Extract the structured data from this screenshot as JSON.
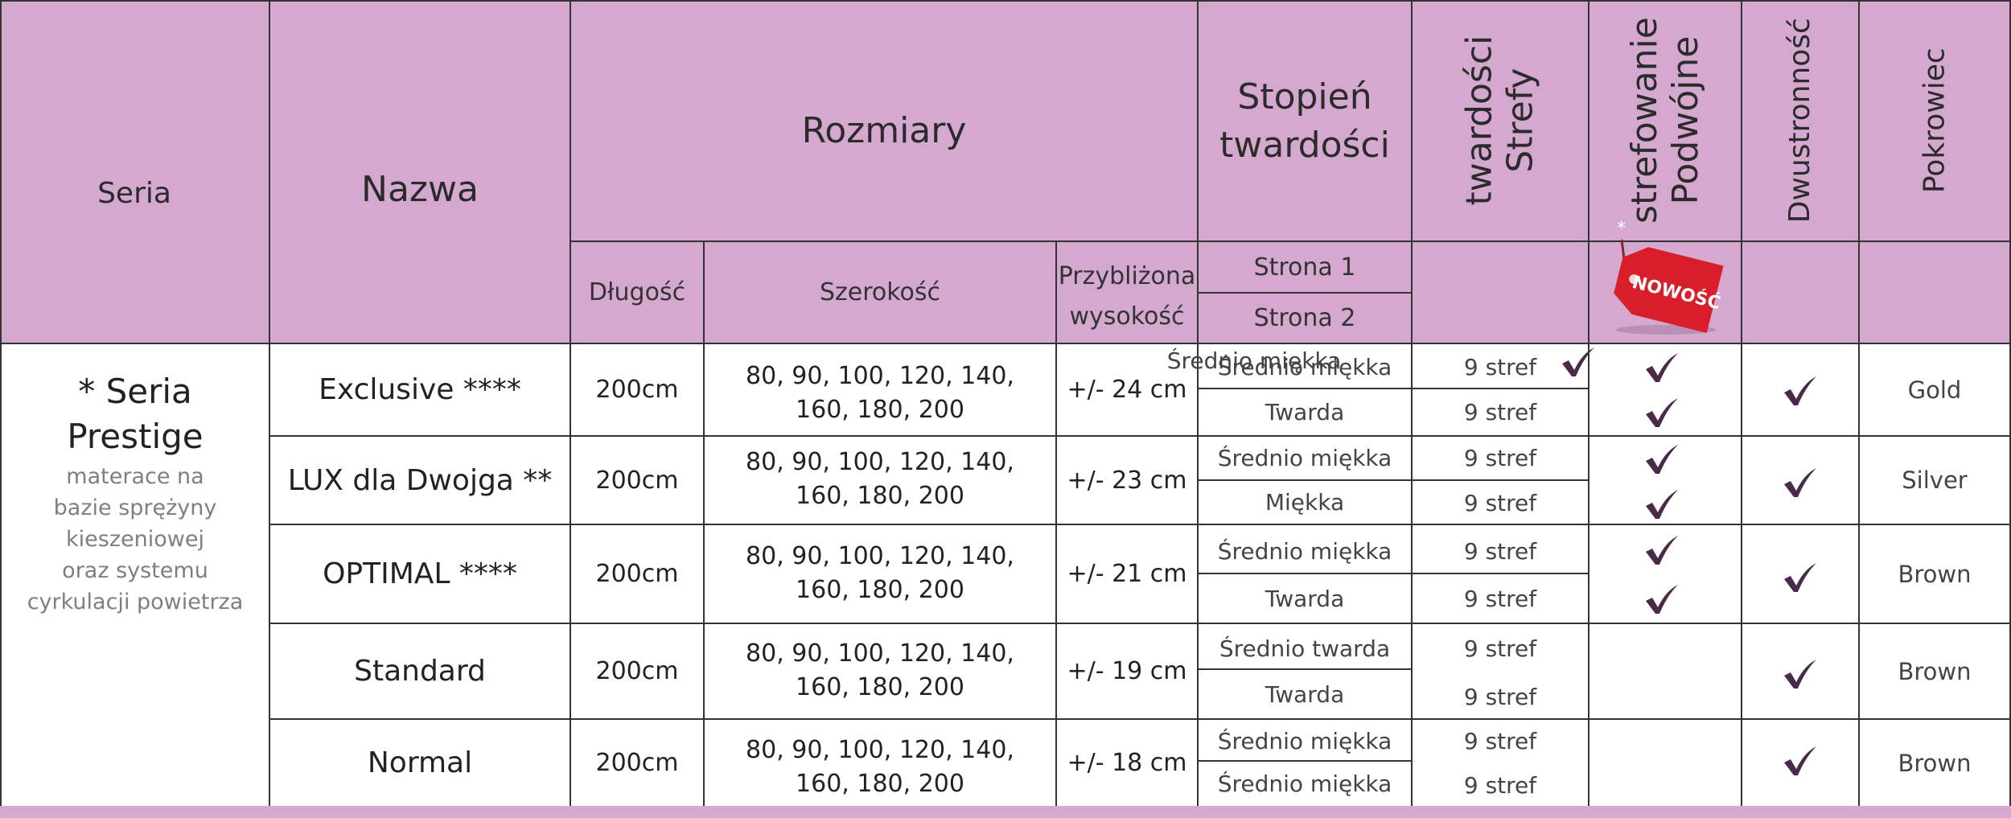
{
  "header": {
    "seria": "Seria",
    "nazwa": "Nazwa",
    "rozmiary": "Rozmiary",
    "dlugosc": "Długość",
    "szerokosc": "Szerokość",
    "wysokosc_line1": "Przybliżona",
    "wysokosc_line2": "wysokość",
    "stopien_line1": "Stopień",
    "stopien_line2": "twardości",
    "strona1": "Strona  1",
    "strona2": "Strona  2",
    "strefy_line1": "Strefy",
    "strefy_line2": "twardości",
    "podwojne_line1": "Podwójne",
    "podwojne_line2": "strefowanie",
    "dwustronnosc": "Dwustronność",
    "pokrowiec": "Pokrowiec",
    "badge_text": "NOWOŚĆ",
    "badge_star": "*"
  },
  "series": {
    "title_line1": "* Seria",
    "title_line2": "Prestige",
    "desc_line1": "materace na",
    "desc_line2": "bazie sprężyny",
    "desc_line3": "kieszeniowej",
    "desc_line4": "oraz systemu",
    "desc_line5": "cyrkulacji powietrza"
  },
  "overlap_label": "Średnio miękka",
  "products": [
    {
      "name": "Exclusive ****",
      "length": "200cm",
      "widths_line1": "80, 90, 100, 120, 140,",
      "widths_line2": "160, 180, 200",
      "height": "+/- 24 cm",
      "side1": "Średnio miękka",
      "side2": "Twarda",
      "zones1": "9 stref",
      "zones2": "9 stref",
      "double_zoning": [
        true,
        true
      ],
      "reversible": true,
      "cover": "Gold"
    },
    {
      "name": "LUX dla Dwojga **",
      "length": "200cm",
      "widths_line1": "80, 90, 100, 120, 140,",
      "widths_line2": "160, 180, 200",
      "height": "+/- 23 cm",
      "side1": "Średnio miękka",
      "side2": "Miękka",
      "zones1": "9 stref",
      "zones2": "9 stref",
      "double_zoning": [
        true,
        true
      ],
      "reversible": true,
      "cover": "Silver"
    },
    {
      "name": "OPTIMAL ****",
      "length": "200cm",
      "widths_line1": "80, 90, 100, 120, 140,",
      "widths_line2": "160, 180, 200",
      "height": "+/- 21 cm",
      "side1": "Średnio miękka",
      "side2": "Twarda",
      "zones1": "9 stref",
      "zones2": "9 stref",
      "double_zoning": [
        true,
        true
      ],
      "reversible": true,
      "cover": "Brown"
    },
    {
      "name": "Standard",
      "length": "200cm",
      "widths_line1": "80, 90, 100, 120, 140,",
      "widths_line2": "160, 180, 200",
      "height": "+/- 19 cm",
      "side1": "Średnio twarda",
      "side2": "Twarda",
      "zones1": "9 stref",
      "zones2": "9 stref",
      "double_zoning": [
        false,
        false
      ],
      "reversible": true,
      "cover": "Brown"
    },
    {
      "name": "Normal",
      "length": "200cm",
      "widths_line1": "80, 90, 100, 120, 140,",
      "widths_line2": "160, 180, 200",
      "height": "+/- 18 cm",
      "side1": "Średnio miękka",
      "side2": "Średnio miękka",
      "zones1": "9 stref",
      "zones2": "9 stref",
      "double_zoning": [
        false,
        false
      ],
      "reversible": true,
      "cover": "Brown"
    }
  ],
  "colors": {
    "header_bg": "#d5a9cf",
    "check": "#4a2a48",
    "badge": "#d81e2a"
  }
}
